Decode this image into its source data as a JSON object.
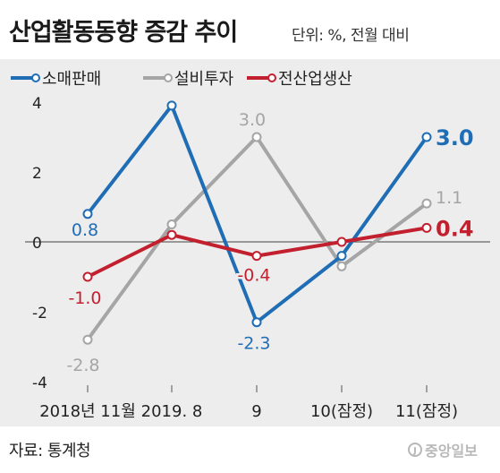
{
  "title": "산업활동동향 증감 추이",
  "unit_note": "단위: %, 전월 대비",
  "source": "자료: 통계청",
  "brand": "중앙일보",
  "colors": {
    "retail": "#1f6db5",
    "facility": "#a5a5a5",
    "production": "#c3202f"
  },
  "chart_data": {
    "type": "line",
    "categories": [
      "2018년 11월",
      "2019. 8",
      "9",
      "10(잠정)",
      "11(잠정)"
    ],
    "ylim": [
      -4,
      4
    ],
    "yticks": [
      "4",
      "2",
      "0",
      "-2",
      "-4"
    ],
    "grid": false,
    "legend": "top-left",
    "series": [
      {
        "name": "소매판매",
        "values": [
          0.8,
          3.9,
          -2.3,
          -0.4,
          3.0
        ],
        "labels": [
          "0.8",
          "",
          "-2.3",
          "",
          "3.0"
        ]
      },
      {
        "name": "설비투자",
        "values": [
          -2.8,
          0.5,
          3.0,
          -0.7,
          1.1
        ],
        "labels": [
          "-2.8",
          "",
          "3.0",
          "",
          "1.1"
        ]
      },
      {
        "name": "전산업생산",
        "values": [
          -1.0,
          0.2,
          -0.4,
          0.0,
          0.4
        ],
        "labels": [
          "-1.0",
          "",
          "-0.4",
          "",
          "0.4"
        ]
      }
    ]
  }
}
